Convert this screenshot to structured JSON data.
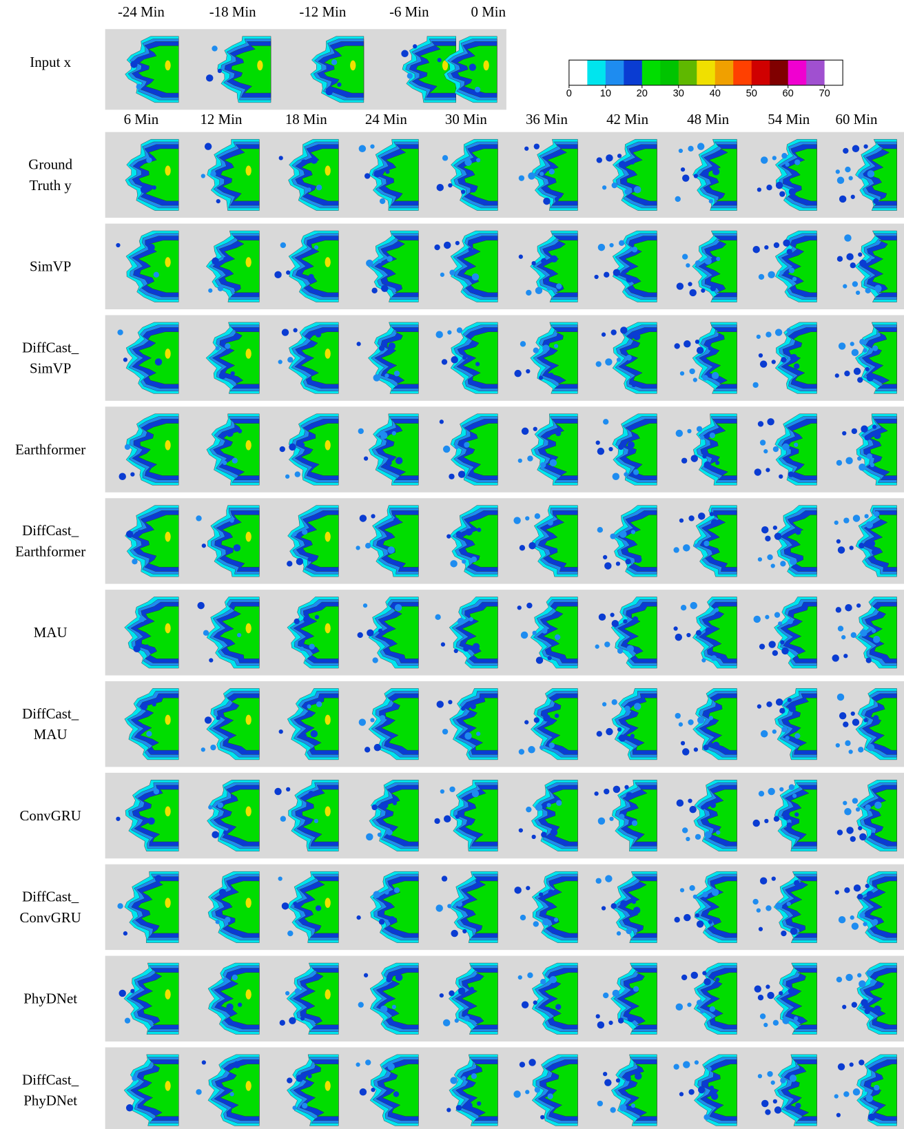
{
  "input_label": "Input x",
  "input_times": [
    "-24 Min",
    "-18 Min",
    "-12 Min",
    "-6 Min",
    "0 Min"
  ],
  "output_times": [
    "6 Min",
    "12 Min",
    "18 Min",
    "24 Min",
    "30 Min",
    "36 Min",
    "42 Min",
    "48 Min",
    "54 Min",
    "60 Min"
  ],
  "colorbar": {
    "range": [
      0,
      75
    ],
    "ticks": [
      0,
      10,
      20,
      30,
      40,
      50,
      60,
      70
    ],
    "colors": [
      "#ffffff",
      "#00e5ee",
      "#1e8cf0",
      "#0a3cd2",
      "#00dd00",
      "#00c400",
      "#5fb800",
      "#f0e000",
      "#f0a000",
      "#ff4000",
      "#d00000",
      "#800000",
      "#f000d0",
      "#a050d0",
      "#ffffff"
    ]
  },
  "rows": [
    {
      "label": [
        "Ground",
        "Truth y"
      ]
    },
    {
      "label": [
        "SimVP"
      ]
    },
    {
      "label": [
        "DiffCast_",
        "SimVP"
      ]
    },
    {
      "label": [
        "Earthformer"
      ]
    },
    {
      "label": [
        "DiffCast_",
        "Earthformer"
      ]
    },
    {
      "label": [
        "MAU"
      ]
    },
    {
      "label": [
        "DiffCast_",
        "MAU"
      ]
    },
    {
      "label": [
        "ConvGRU"
      ]
    },
    {
      "label": [
        "DiffCast_",
        "ConvGRU"
      ]
    },
    {
      "label": [
        "PhyDNet"
      ]
    },
    {
      "label": [
        "DiffCast_",
        "PhyDNet"
      ]
    }
  ]
}
